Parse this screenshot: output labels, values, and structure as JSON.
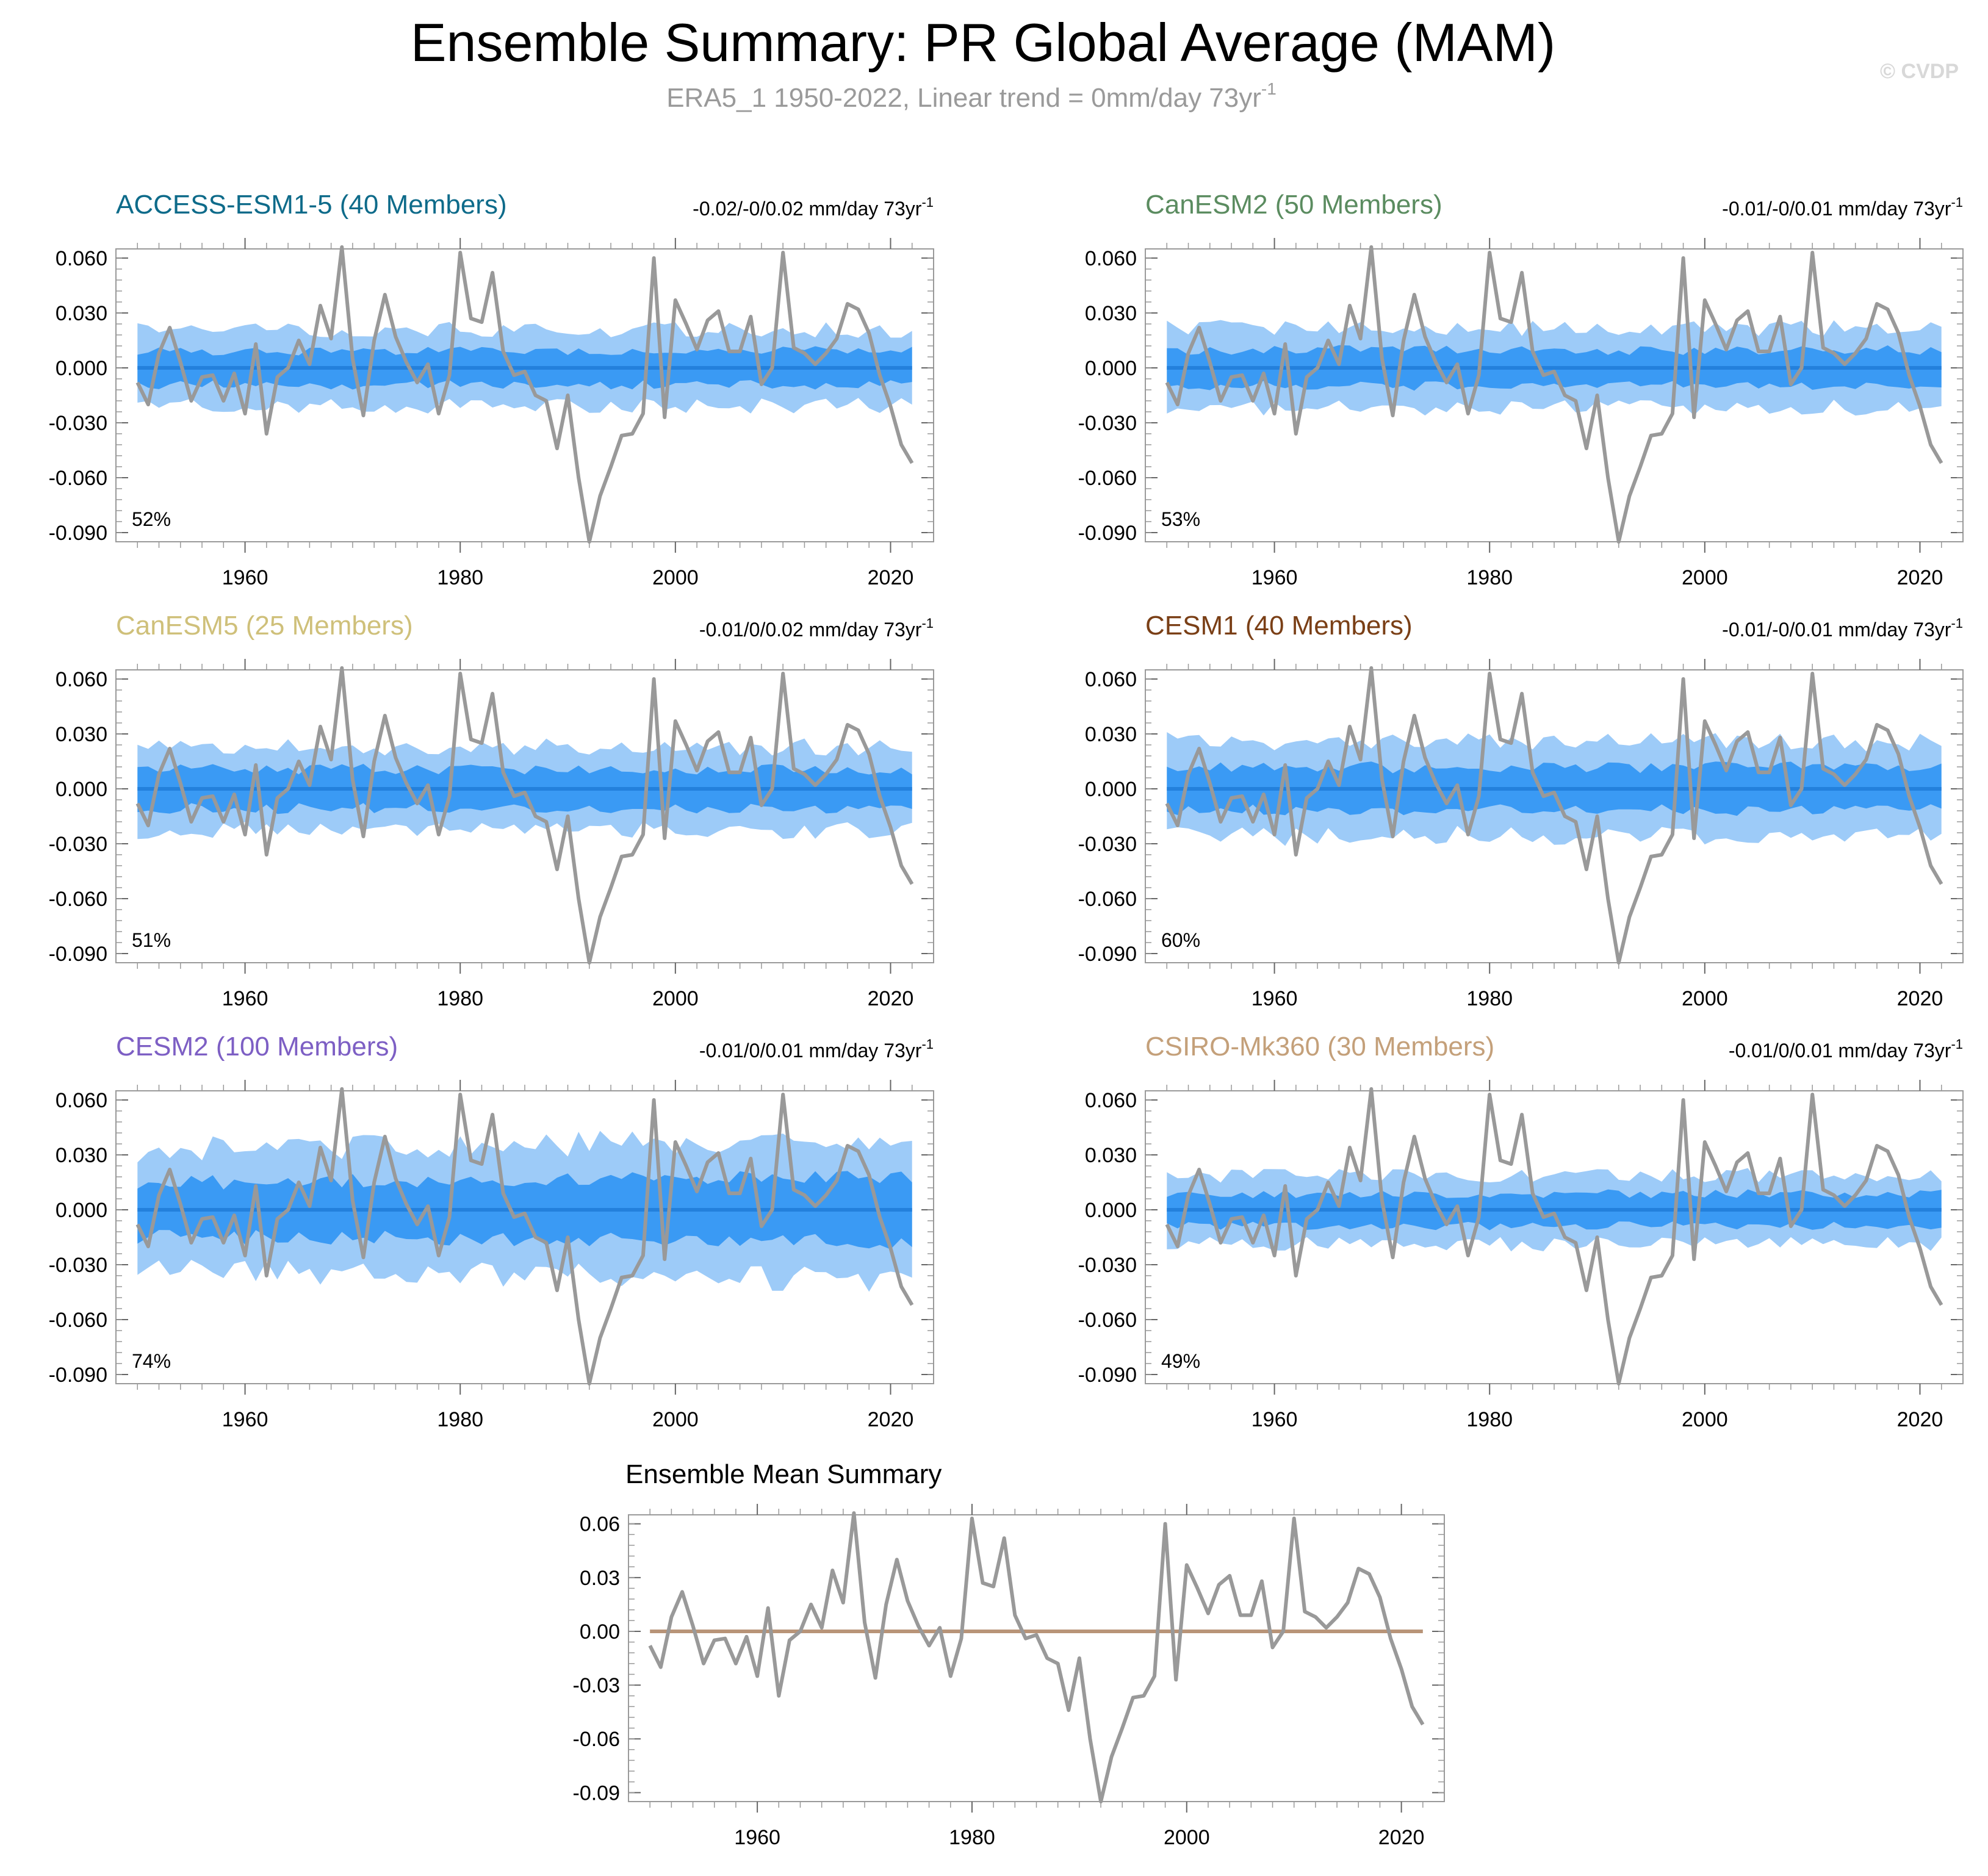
{
  "title": "Ensemble Summary: PR Global Average (MAM)",
  "subtitle": "ERA5_1 1950-2022, Linear trend = 0mm/day 73yr",
  "subtitle_sup": "-1",
  "watermark": "© CVDP",
  "colors": {
    "outer_band": "#9dcbf8",
    "inner_band": "#3a9af4",
    "median_line": "#2380dc",
    "obs_line": "#999999",
    "mean_summary_line": "#b89478"
  },
  "chart_data": {
    "type": "line",
    "x_range": [
      1948,
      2024
    ],
    "x_ticks": [
      "1960",
      "1980",
      "2000",
      "2020"
    ],
    "ylim": [
      -0.095,
      0.065
    ],
    "y_ticks": [
      "0.060",
      "0.030",
      "0.000",
      "-0.030",
      "-0.060",
      "-0.090"
    ],
    "observations": {
      "name": "ERA5_1 1950-2022",
      "x_start": 1950,
      "values": [
        -0.008,
        -0.02,
        0.008,
        0.022,
        0.003,
        -0.018,
        -0.005,
        -0.004,
        -0.018,
        -0.003,
        -0.025,
        0.013,
        -0.036,
        -0.005,
        0.0,
        0.015,
        0.002,
        0.034,
        0.016,
        0.066,
        0.005,
        -0.026,
        0.015,
        0.04,
        0.017,
        0.003,
        -0.008,
        0.002,
        -0.025,
        -0.004,
        0.063,
        0.027,
        0.025,
        0.052,
        0.009,
        -0.004,
        -0.002,
        -0.015,
        -0.018,
        -0.044,
        -0.015,
        -0.06,
        -0.095,
        -0.07,
        -0.054,
        -0.037,
        -0.036,
        -0.025,
        0.06,
        -0.027,
        0.037,
        0.024,
        0.01,
        0.026,
        0.031,
        0.009,
        0.009,
        0.028,
        -0.009,
        0.0,
        0.063,
        0.011,
        0.008,
        0.002,
        0.008,
        0.016,
        0.035,
        0.032,
        0.019,
        -0.004,
        -0.021,
        -0.042,
        -0.052
      ]
    },
    "panels": [
      {
        "model": "ACCESS-ESM1-5",
        "label": "ACCESS-ESM1-5 (40 Members)",
        "color": "#0e6b8a",
        "trend_text": "-0.02/-0/0.02 mm/day 73yr",
        "trend_sup": "-1",
        "percent": "52%",
        "outer": 0.021,
        "inner": 0.0095,
        "seed": 11,
        "drift": 0.0
      },
      {
        "model": "CanESM2",
        "label": "CanESM2 (50 Members)",
        "color": "#5b8c60",
        "trend_text": "-0.01/-0/0.01 mm/day 73yr",
        "trend_sup": "-1",
        "percent": "53%",
        "outer": 0.022,
        "inner": 0.01,
        "seed": 23,
        "drift": 0.0
      },
      {
        "model": "CanESM5",
        "label": "CanESM5 (25 Members)",
        "color": "#cfc07a",
        "trend_text": "-0.01/0/0.02 mm/day 73yr",
        "trend_sup": "-1",
        "percent": "51%",
        "outer": 0.023,
        "inner": 0.011,
        "seed": 37,
        "drift": 0.0
      },
      {
        "model": "CESM1",
        "label": "CESM1 (40 Members)",
        "color": "#7a3f16",
        "trend_text": "-0.01/-0/0.01 mm/day 73yr",
        "trend_sup": "-1",
        "percent": "60%",
        "outer": 0.026,
        "inner": 0.012,
        "seed": 41,
        "drift": 0.0
      },
      {
        "model": "CESM2",
        "label": "CESM2 (100 Members)",
        "color": "#7d5fc4",
        "trend_text": "-0.01/0/0.01 mm/day 73yr",
        "trend_sup": "-1",
        "percent": "74%",
        "outer": 0.033,
        "inner": 0.015,
        "seed": 53,
        "drift": 0.006
      },
      {
        "model": "CSIRO-Mk360",
        "label": "CSIRO-Mk360 (30 Members)",
        "color": "#c4a07a",
        "trend_text": "-0.01/0/0.01 mm/day 73yr",
        "trend_sup": "-1",
        "percent": "49%",
        "outer": 0.019,
        "inner": 0.009,
        "seed": 67,
        "drift": 0.0
      }
    ],
    "mean_summary": {
      "title": "Ensemble Mean Summary",
      "y_ticks": [
        "0.06",
        "0.03",
        "0.00",
        "-0.03",
        "-0.06",
        "-0.09"
      ],
      "mean_value": 0.0
    }
  }
}
